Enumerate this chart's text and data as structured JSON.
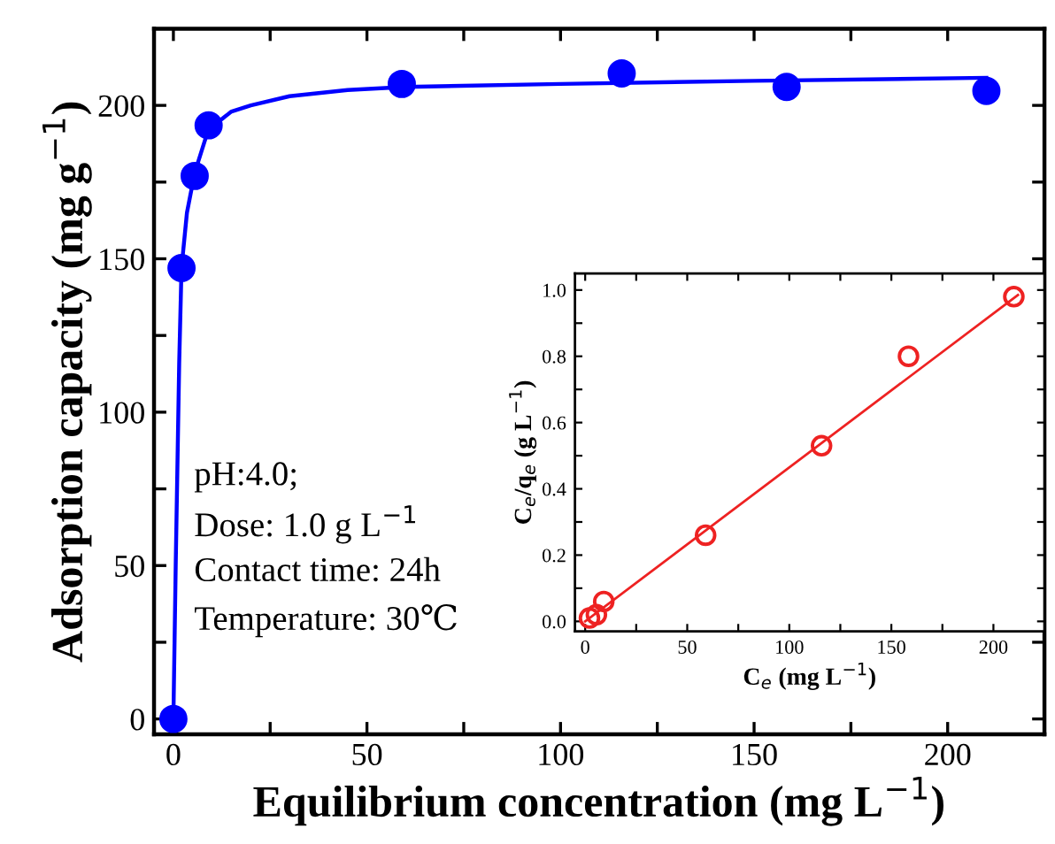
{
  "chart_data": [
    {
      "type": "scatter",
      "xlabel": "Equilibrium concentration (mg L$^{−1}$)",
      "ylabel": "Adsorption capacity (mg g$^{−1}$)",
      "annotations": [
        "pH:4.0;",
        "Dose: 1.0 g L$^{−1}$",
        "Contact time: 24h",
        "Temperature: 30℃"
      ],
      "xlim": [
        -5,
        225
      ],
      "ylim": [
        -5,
        225
      ],
      "xticks": [
        0,
        {
          "value": 25,
          "label": null
        },
        50,
        {
          "value": 75,
          "label": null
        },
        100,
        {
          "value": 125,
          "label": null
        },
        150,
        {
          "value": 175,
          "label": null
        },
        200
      ],
      "yticks": [
        0,
        {
          "value": 25,
          "label": null
        },
        50,
        {
          "value": 75,
          "label": null
        },
        100,
        {
          "value": 125,
          "label": null
        },
        150,
        {
          "value": 175,
          "label": null
        },
        200
      ],
      "grid": false,
      "legend": false,
      "marker": "circle",
      "series": [
        {
          "color": "#0000ff",
          "x": [
            0,
            2.1,
            5.5,
            9.1,
            59,
            115.8,
            158.4,
            210
          ],
          "values": [
            0,
            147,
            177,
            193.5,
            207,
            210.4,
            206,
            204.7
          ]
        },
        {
          "type": "line",
          "color": "#0000ff",
          "marker": "none",
          "line_style": "solid",
          "x": [
            0,
            0.6,
            1.5,
            2.1,
            3.5,
            5.5,
            9,
            15,
            20,
            30,
            45,
            60,
            100,
            150,
            210
          ],
          "values": [
            0,
            50,
            116,
            147,
            165,
            178,
            192,
            198,
            200,
            203,
            205,
            206,
            207,
            208,
            209
          ]
        }
      ]
    },
    {
      "type": "scatter",
      "xlabel": "C$_{e}$ (mg L$^{−1}$)",
      "ylabel": "C$_{e}$/q$_{e}$ (g L$^{−1}$)",
      "xlim": [
        -5,
        225
      ],
      "ylim": [
        -0.03,
        1.05
      ],
      "xticks": [
        0,
        {
          "value": 25,
          "label": null
        },
        50,
        {
          "value": 75,
          "label": null
        },
        100,
        {
          "value": 125,
          "label": null
        },
        150,
        {
          "value": 175,
          "label": null
        },
        200
      ],
      "yticks": [
        {
          "value": 0,
          "label": "0.0"
        },
        {
          "value": 0.1,
          "label": null
        },
        0.2,
        {
          "value": 0.3,
          "label": null
        },
        0.4,
        {
          "value": 0.5,
          "label": null
        },
        0.6,
        {
          "value": 0.7,
          "label": null
        },
        0.8,
        {
          "value": 0.9,
          "label": null
        },
        {
          "value": 1.0,
          "label": "1.0"
        }
      ],
      "grid": false,
      "legend": false,
      "marker": "circle",
      "series": [
        {
          "color": "#ee2222",
          "x": [
            2.1,
            5.5,
            9.1,
            59,
            115.8,
            158.4,
            210
          ],
          "values": [
            0.01,
            0.02,
            0.06,
            0.26,
            0.53,
            0.8,
            0.98
          ]
        },
        {
          "type": "line",
          "color": "#ee2222",
          "marker": "none",
          "line_style": "solid",
          "x": [
            0,
            212
          ],
          "values": [
            0.0,
            0.985
          ]
        }
      ]
    }
  ]
}
